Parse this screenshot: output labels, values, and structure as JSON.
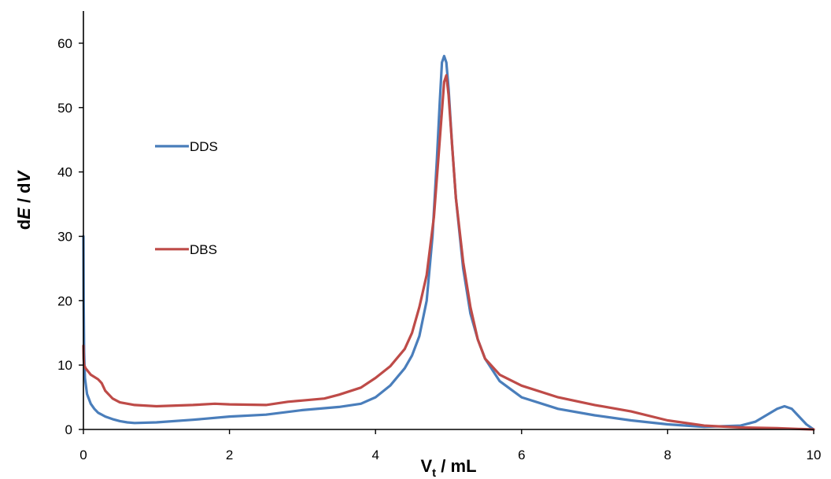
{
  "chart_data": {
    "type": "line",
    "xlabel": {
      "main": "V",
      "sub": "t",
      "rest": " / mL"
    },
    "ylabel": {
      "d1": "d",
      "e": "E",
      "sep": " / d",
      "v": "V"
    },
    "xlim": [
      0,
      10
    ],
    "ylim": [
      0,
      65
    ],
    "xticks": [
      0,
      2,
      4,
      6,
      8,
      10
    ],
    "yticks": [
      0,
      10,
      20,
      30,
      40,
      50,
      60
    ],
    "grid": false,
    "legend": "left-inside",
    "series": [
      {
        "name": "DDS",
        "color": "#4a7ebb",
        "x": [
          0,
          0.003,
          0.01,
          0.02,
          0.05,
          0.1,
          0.15,
          0.2,
          0.3,
          0.4,
          0.5,
          0.6,
          0.7,
          1.0,
          1.5,
          2.0,
          2.5,
          3.0,
          3.5,
          3.8,
          4.0,
          4.2,
          4.4,
          4.5,
          4.6,
          4.7,
          4.78,
          4.84,
          4.88,
          4.91,
          4.94,
          4.97,
          5.0,
          5.05,
          5.1,
          5.2,
          5.3,
          5.4,
          5.5,
          5.7,
          6.0,
          6.5,
          7.0,
          7.5,
          8.0,
          8.5,
          9.0,
          9.2,
          9.35,
          9.5,
          9.6,
          9.7,
          9.8,
          9.9,
          10.0
        ],
        "y": [
          30,
          20,
          12,
          8,
          5.5,
          4,
          3.2,
          2.6,
          2,
          1.6,
          1.3,
          1.1,
          1.0,
          1.1,
          1.5,
          2.0,
          2.3,
          3.0,
          3.5,
          4.0,
          5.0,
          6.8,
          9.5,
          11.5,
          14.5,
          20,
          30,
          42,
          51,
          57,
          58,
          57,
          53,
          44,
          36,
          25,
          18,
          14,
          11,
          7.5,
          5,
          3.2,
          2.2,
          1.4,
          0.8,
          0.4,
          0.6,
          1.2,
          2.2,
          3.2,
          3.6,
          3.2,
          2.0,
          0.8,
          0
        ]
      },
      {
        "name": "DBS",
        "color": "#be4b48",
        "x": [
          0,
          0.003,
          0.01,
          0.03,
          0.1,
          0.2,
          0.25,
          0.3,
          0.4,
          0.5,
          0.7,
          1.0,
          1.5,
          1.8,
          2.0,
          2.5,
          2.8,
          3.0,
          3.3,
          3.5,
          3.8,
          4.0,
          4.2,
          4.4,
          4.5,
          4.6,
          4.7,
          4.8,
          4.86,
          4.9,
          4.94,
          4.97,
          5.0,
          5.05,
          5.1,
          5.2,
          5.3,
          5.4,
          5.5,
          5.7,
          6.0,
          6.5,
          7.0,
          7.5,
          8.0,
          8.5,
          9.0,
          9.5,
          10.0
        ],
        "y": [
          13,
          11,
          10,
          9.5,
          8.5,
          7.8,
          7.2,
          6.0,
          4.8,
          4.2,
          3.8,
          3.6,
          3.8,
          4.0,
          3.9,
          3.8,
          4.3,
          4.5,
          4.8,
          5.4,
          6.5,
          8.0,
          9.8,
          12.5,
          15,
          19,
          24,
          33,
          42,
          48,
          54,
          55,
          52,
          44,
          36,
          26,
          19,
          14,
          11,
          8.5,
          6.8,
          5.0,
          3.8,
          2.8,
          1.4,
          0.6,
          0.3,
          0.2,
          0
        ]
      }
    ]
  }
}
